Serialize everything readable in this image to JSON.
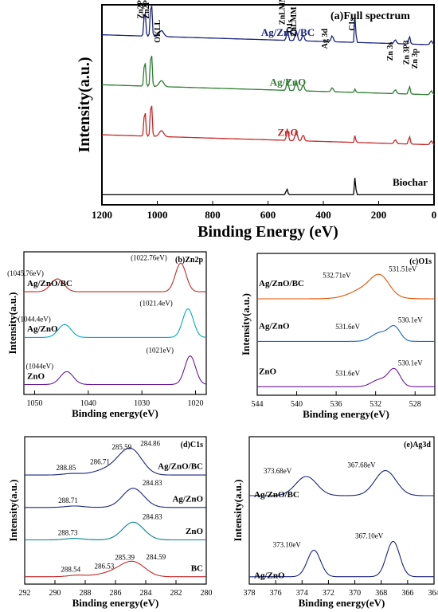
{
  "chart_data": [
    {
      "type": "line",
      "title": "(a)Full spectrum",
      "xlabel": "Binding Energy (eV)",
      "ylabel": "Intensity(a.u.)",
      "xlim": [
        1200,
        0
      ],
      "xticks": [
        1200,
        1000,
        800,
        600,
        400,
        200,
        0
      ],
      "series": [
        {
          "name": "Ag/ZnO/BC",
          "color": "#1a237e",
          "offset": 0.8,
          "kind": "znpeaks",
          "peaks": [
            [
              1045,
              0.14,
              3
            ],
            [
              1022,
              0.19,
              3
            ],
            [
              985,
              0.03,
              8
            ],
            [
              530,
              0.06,
              3
            ],
            [
              498,
              0.05,
              4
            ],
            [
              473,
              0.03,
              4
            ],
            [
              368,
              0.03,
              4
            ],
            [
              285,
              0.16,
              2
            ],
            [
              140,
              0.02,
              4
            ],
            [
              89,
              0.04,
              3
            ],
            [
              10,
              0.02,
              4
            ]
          ]
        },
        {
          "name": "Ag/ZnO",
          "color": "#2e7d32",
          "offset": 0.55,
          "kind": "znpeaks",
          "peaks": [
            [
              1045,
              0.14,
              3
            ],
            [
              1022,
              0.19,
              3
            ],
            [
              985,
              0.03,
              8
            ],
            [
              530,
              0.06,
              3
            ],
            [
              498,
              0.05,
              4
            ],
            [
              473,
              0.03,
              4
            ],
            [
              368,
              0.02,
              4
            ],
            [
              285,
              0.02,
              2
            ],
            [
              140,
              0.02,
              4
            ],
            [
              89,
              0.04,
              3
            ],
            [
              10,
              0.02,
              4
            ]
          ]
        },
        {
          "name": "ZnO",
          "color": "#c62828",
          "offset": 0.3,
          "kind": "znpeaks",
          "peaks": [
            [
              1045,
              0.14,
              3
            ],
            [
              1022,
              0.19,
              3
            ],
            [
              985,
              0.03,
              8
            ],
            [
              530,
              0.06,
              3
            ],
            [
              498,
              0.05,
              4
            ],
            [
              473,
              0.03,
              4
            ],
            [
              285,
              0.04,
              2
            ],
            [
              140,
              0.02,
              4
            ],
            [
              89,
              0.04,
              3
            ],
            [
              10,
              0.02,
              4
            ]
          ]
        },
        {
          "name": "Biochar",
          "color": "#000000",
          "offset": 0.05,
          "kind": "flat",
          "peaks": [
            [
              532,
              0.03,
              3
            ],
            [
              285,
              0.1,
              2
            ]
          ]
        }
      ],
      "annotations": [
        "Zn2P1",
        "Zn2P3",
        "OKLL",
        "ZnLMM",
        "O1s",
        "ZnLMM",
        "Ag 3d",
        "C1s",
        "Zn 3s",
        "Zn 3P3",
        "Zn 3p"
      ]
    },
    {
      "type": "line",
      "title": "(b)Zn2p",
      "xlabel": "Binding energy(eV)",
      "ylabel": "Intensity(a.u.)",
      "xlim": [
        1052,
        1018
      ],
      "xticks": [
        1050,
        1040,
        1030,
        1020
      ],
      "series": [
        {
          "name": "Ag/ZnO/BC",
          "color": "#c62828",
          "offset": 0.72,
          "peaks": [
            [
              1045.76,
              0.09,
              1.2
            ],
            [
              1022.76,
              0.2,
              1.0
            ]
          ]
        },
        {
          "name": "Ag/ZnO",
          "color": "#00acc1",
          "offset": 0.4,
          "peaks": [
            [
              1044.4,
              0.09,
              1.2
            ],
            [
              1021.4,
              0.2,
              1.0
            ]
          ]
        },
        {
          "name": "ZnO",
          "color": "#6a1b9a",
          "offset": 0.07,
          "peaks": [
            [
              1044,
              0.09,
              1.2
            ],
            [
              1021,
              0.2,
              1.0
            ]
          ]
        }
      ],
      "annotations": [
        "(1045.76eV)",
        "(1022.76eV)",
        "(1044.4eV)",
        "(1021.4eV)",
        "(1044eV)",
        "(1021eV)"
      ]
    },
    {
      "type": "line",
      "title": "(c)O1s",
      "xlabel": "Binding energy(eV)",
      "ylabel": "Intensity(a.u.)",
      "xlim": [
        544,
        526
      ],
      "xticks": [
        544,
        540,
        536,
        532,
        528
      ],
      "series": [
        {
          "name": "Ag/ZnO/BC",
          "color": "#e65100",
          "offset": 0.68,
          "peaks": [
            [
              532.71,
              0.08,
              1.6
            ],
            [
              531.51,
              0.11,
              0.9
            ]
          ]
        },
        {
          "name": "Ag/ZnO",
          "color": "#1565c0",
          "offset": 0.38,
          "peaks": [
            [
              531.6,
              0.06,
              0.8
            ],
            [
              530.1,
              0.1,
              0.6
            ]
          ]
        },
        {
          "name": "ZnO",
          "color": "#6a1b9a",
          "offset": 0.06,
          "peaks": [
            [
              531.6,
              0.05,
              0.8
            ],
            [
              530.1,
              0.12,
              0.6
            ]
          ]
        }
      ],
      "annotations": [
        "532.71eV",
        "531.51eV",
        "531.6eV",
        "530.1eV",
        "531.6eV",
        "530.1eV"
      ]
    },
    {
      "type": "line",
      "title": "(d)C1s",
      "xlabel": "Binding energy(eV)",
      "ylabel": "Intensity(a.u.)",
      "xlim": [
        292,
        280
      ],
      "xticks": [
        292,
        290,
        288,
        286,
        284,
        282,
        280
      ],
      "series": [
        {
          "name": "Ag/ZnO/BC",
          "color": "#1a237e",
          "offset": 0.74,
          "peaks": [
            [
              288.85,
              0.01,
              0.6
            ],
            [
              286.71,
              0.03,
              0.8
            ],
            [
              285.59,
              0.06,
              0.7
            ],
            [
              284.86,
              0.14,
              0.7
            ]
          ]
        },
        {
          "name": "Ag/ZnO",
          "color": "#1a237e",
          "offset": 0.52,
          "peaks": [
            [
              288.71,
              0.01,
              0.6
            ],
            [
              284.83,
              0.13,
              0.7
            ]
          ]
        },
        {
          "name": "ZnO",
          "color": "#00838f",
          "offset": 0.3,
          "peaks": [
            [
              288.73,
              0.01,
              0.6
            ],
            [
              284.83,
              0.12,
              0.7
            ]
          ]
        },
        {
          "name": "BC",
          "color": "#c62828",
          "offset": 0.05,
          "peaks": [
            [
              288.54,
              0.01,
              0.6
            ],
            [
              286.53,
              0.02,
              0.8
            ],
            [
              285.39,
              0.05,
              0.7
            ],
            [
              284.59,
              0.07,
              0.7
            ]
          ]
        }
      ],
      "annotations": [
        "288.85",
        "286.71",
        "285.59",
        "284.86",
        "288.71",
        "284.83",
        "288.73",
        "284.83",
        "288.54",
        "286.53",
        "285.39",
        "284.59"
      ]
    },
    {
      "type": "line",
      "title": "(e)Ag3d",
      "xlabel": "Binding energy(eV)",
      "ylabel": "Intensity(a.u.)",
      "xlim": [
        378,
        364
      ],
      "xticks": [
        378,
        376,
        374,
        372,
        370,
        368,
        366,
        364
      ],
      "series": [
        {
          "name": "Ag/ZnO/BC",
          "color": "#1a237e",
          "offset": 0.6,
          "peaks": [
            [
              373.68,
              0.13,
              0.8
            ],
            [
              367.68,
              0.17,
              0.8
            ]
          ]
        },
        {
          "name": "Ag/ZnO",
          "color": "#1a237e",
          "offset": 0.05,
          "peaks": [
            [
              373.1,
              0.18,
              0.5
            ],
            [
              367.1,
              0.24,
              0.5
            ]
          ]
        }
      ],
      "annotations": [
        "373.68eV",
        "367.68eV",
        "373.10eV",
        "367.10eV"
      ]
    }
  ]
}
